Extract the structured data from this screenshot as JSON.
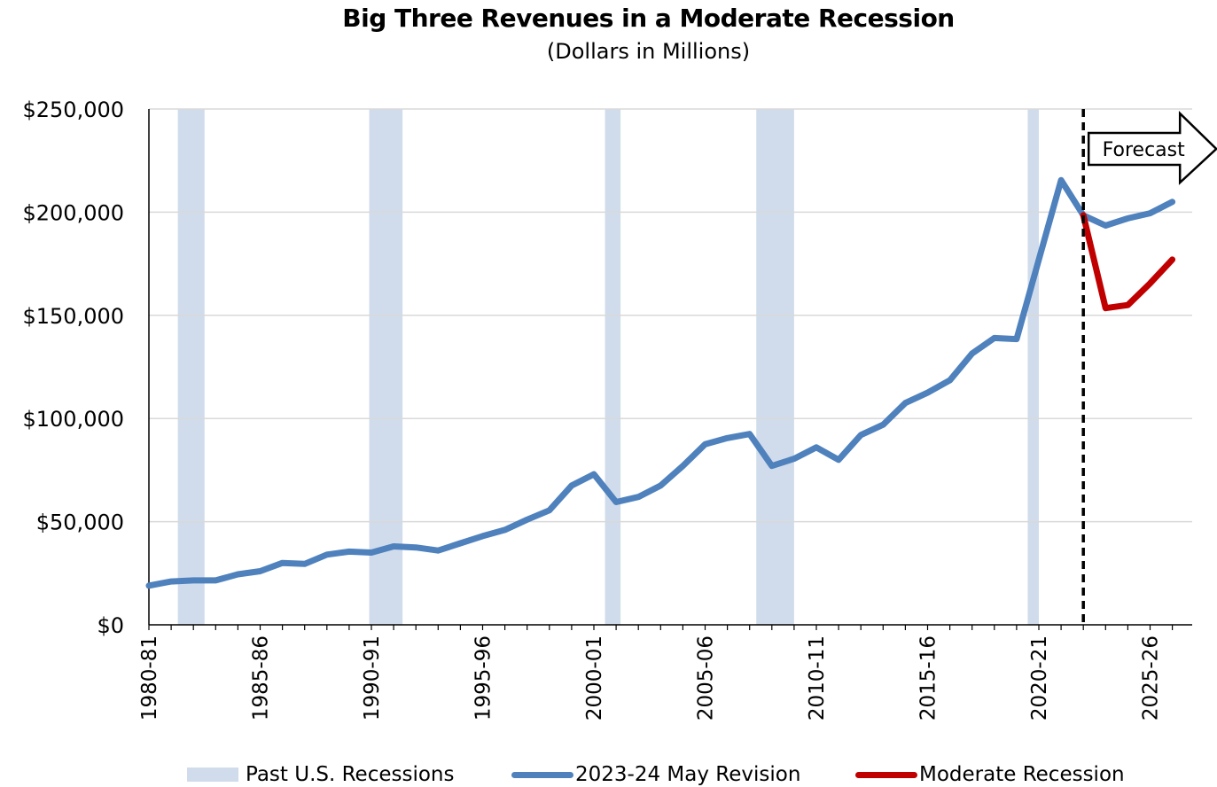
{
  "chart_data": {
    "type": "line",
    "title": "Big Three Revenues in a Moderate Recession",
    "subtitle": "(Dollars in Millions)",
    "xlabel": "",
    "ylabel": "",
    "ylim": [
      0,
      250000
    ],
    "yticks": [
      {
        "value": 0,
        "label": "$0"
      },
      {
        "value": 50000,
        "label": "$50,000"
      },
      {
        "value": 100000,
        "label": "$100,000"
      },
      {
        "value": 150000,
        "label": "$150,000"
      },
      {
        "value": 200000,
        "label": "$200,000"
      },
      {
        "value": 250000,
        "label": "$250,000"
      }
    ],
    "x_tick_labels": [
      "1980-81",
      "1985-86",
      "1990-91",
      "1995-96",
      "2000-01",
      "2005-06",
      "2010-11",
      "2015-16",
      "2020-21",
      "2025-26"
    ],
    "grid": "horizontal",
    "legend_position": "bottom",
    "x": [
      "1980-81",
      "1981-82",
      "1982-83",
      "1983-84",
      "1984-85",
      "1985-86",
      "1986-87",
      "1987-88",
      "1988-89",
      "1989-90",
      "1990-91",
      "1991-92",
      "1992-93",
      "1993-94",
      "1994-95",
      "1995-96",
      "1996-97",
      "1997-98",
      "1998-99",
      "1999-00",
      "2000-01",
      "2001-02",
      "2002-03",
      "2003-04",
      "2004-05",
      "2005-06",
      "2006-07",
      "2007-08",
      "2008-09",
      "2009-10",
      "2010-11",
      "2011-12",
      "2012-13",
      "2013-14",
      "2014-15",
      "2015-16",
      "2016-17",
      "2017-18",
      "2018-19",
      "2019-20",
      "2020-21",
      "2021-22",
      "2022-23",
      "2023-24",
      "2024-25",
      "2025-26",
      "2026-27"
    ],
    "series": [
      {
        "name": "2023-24 May Revision",
        "color": "#4f81bd",
        "values": [
          19000,
          21000,
          21500,
          21500,
          24500,
          26000,
          30000,
          29500,
          34000,
          35500,
          35000,
          38000,
          37500,
          36000,
          39500,
          43000,
          46000,
          51000,
          55500,
          67500,
          73000,
          59500,
          62000,
          67500,
          77000,
          87500,
          90500,
          92500,
          77000,
          80500,
          86000,
          80000,
          92000,
          97000,
          107500,
          112500,
          118500,
          131500,
          139000,
          138500,
          177000,
          215500,
          198500,
          193500,
          197000,
          199500,
          205000
        ]
      },
      {
        "name": "Moderate Recession",
        "color": "#c00000",
        "x": [
          "2022-23",
          "2023-24",
          "2024-25",
          "2025-26",
          "2026-27"
        ],
        "values": [
          198500,
          153500,
          155000,
          165500,
          177000
        ]
      }
    ],
    "shaded_regions": {
      "name": "Past U.S. Recessions",
      "color": "#d0dcec",
      "ranges": [
        [
          1981.3,
          1982.5
        ],
        [
          1989.9,
          1991.4
        ],
        [
          2000.5,
          2001.2
        ],
        [
          2007.3,
          2009.0
        ],
        [
          2019.5,
          2020.0
        ]
      ]
    },
    "forecast_marker": {
      "x": "2022-23",
      "label": "Forecast"
    }
  },
  "legend": {
    "recessions": "Past U.S. Recessions",
    "may_revision": "2023-24 May Revision",
    "moderate_recession": "Moderate Recession"
  }
}
